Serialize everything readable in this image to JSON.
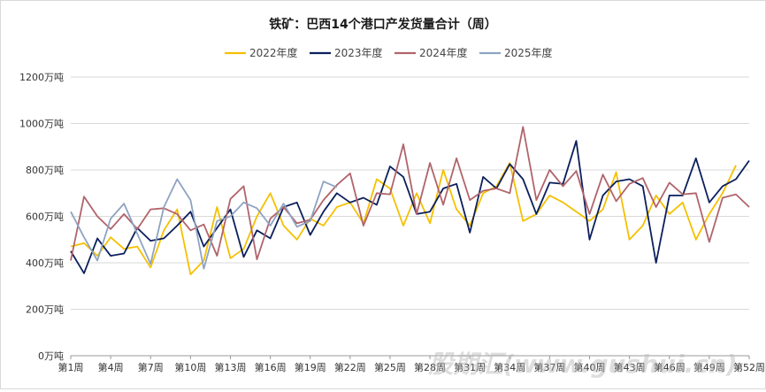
{
  "chart_data": {
    "type": "line",
    "title": "铁矿：巴西14个港口产发货量合计（周）",
    "xlabel": "",
    "ylabel": "",
    "ylim": [
      0,
      1200
    ],
    "ytick_values": [
      0,
      200,
      400,
      600,
      800,
      1000,
      1200
    ],
    "ytick_labels": [
      "0万吨",
      "200万吨",
      "400万吨",
      "600万吨",
      "800万吨",
      "1000万吨",
      "1200万吨"
    ],
    "x": [
      1,
      2,
      3,
      4,
      5,
      6,
      7,
      8,
      9,
      10,
      11,
      12,
      13,
      14,
      15,
      16,
      17,
      18,
      19,
      20,
      21,
      22,
      23,
      24,
      25,
      26,
      27,
      28,
      29,
      30,
      31,
      32,
      33,
      34,
      35,
      36,
      37,
      38,
      39,
      40,
      41,
      42,
      43,
      44,
      45,
      46,
      47,
      48,
      49,
      50,
      51,
      52
    ],
    "xtick_values": [
      1,
      4,
      7,
      10,
      13,
      16,
      19,
      22,
      25,
      28,
      31,
      34,
      37,
      40,
      43,
      46,
      49,
      52
    ],
    "xtick_labels": [
      "第1周",
      "第4周",
      "第7周",
      "第10周",
      "第13周",
      "第16周",
      "第19周",
      "第22周",
      "第25周",
      "第28周",
      "第31周",
      "第34周",
      "第37周",
      "第40周",
      "第43周",
      "第46周",
      "第49周",
      "第52周"
    ],
    "grid": true,
    "legend_position": "top",
    "series": [
      {
        "name": "2022年度",
        "color": "#F5C000",
        "values": [
          470,
          485,
          430,
          510,
          460,
          470,
          380,
          540,
          630,
          350,
          410,
          640,
          420,
          460,
          600,
          700,
          560,
          500,
          590,
          560,
          640,
          660,
          570,
          760,
          720,
          560,
          700,
          570,
          800,
          630,
          560,
          700,
          730,
          830,
          580,
          610,
          690,
          660,
          620,
          580,
          630,
          790,
          500,
          560,
          690,
          610,
          660,
          500,
          610,
          700,
          820,
          null
        ]
      },
      {
        "name": "2023年度",
        "color": "#0B1F5C",
        "values": [
          450,
          355,
          505,
          430,
          440,
          550,
          495,
          505,
          560,
          620,
          470,
          550,
          630,
          425,
          540,
          505,
          640,
          660,
          520,
          620,
          700,
          660,
          680,
          650,
          815,
          770,
          610,
          620,
          720,
          740,
          530,
          770,
          720,
          825,
          760,
          610,
          745,
          740,
          925,
          500,
          690,
          750,
          760,
          730,
          400,
          690,
          690,
          850,
          660,
          730,
          760,
          840
        ]
      },
      {
        "name": "2024年度",
        "color": "#B0646B",
        "values": [
          410,
          685,
          600,
          545,
          610,
          545,
          630,
          635,
          610,
          540,
          565,
          430,
          675,
          730,
          415,
          590,
          640,
          570,
          585,
          670,
          735,
          785,
          560,
          700,
          695,
          910,
          610,
          830,
          650,
          850,
          670,
          710,
          720,
          700,
          985,
          670,
          800,
          730,
          795,
          610,
          780,
          665,
          740,
          765,
          640,
          745,
          695,
          700,
          490,
          680,
          695,
          640
        ]
      },
      {
        "name": "2025年度",
        "color": "#8EA3C2",
        "values": [
          620,
          510,
          410,
          590,
          655,
          525,
          395,
          640,
          760,
          670,
          375,
          580,
          600,
          660,
          635,
          560,
          655,
          555,
          580,
          750,
          725,
          null,
          null,
          null,
          null,
          null,
          null,
          null,
          null,
          null,
          null,
          null,
          null,
          null,
          null,
          null,
          null,
          null,
          null,
          null,
          null,
          null,
          null,
          null,
          null,
          null,
          null,
          null,
          null,
          null,
          null,
          null
        ]
      }
    ]
  },
  "watermark": "股期汇(www.gushui.cn)"
}
